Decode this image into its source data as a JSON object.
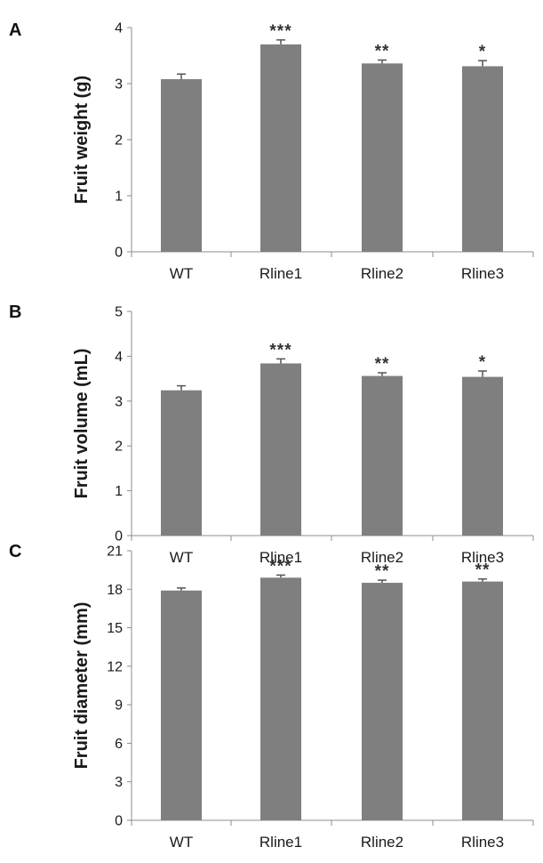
{
  "chart_data": [
    {
      "type": "bar",
      "panel": "A",
      "ylabel": "Fruit weight  (g)",
      "categories": [
        "WT",
        "Rline1",
        "Rline2",
        "Rline3"
      ],
      "values": [
        3.08,
        3.7,
        3.36,
        3.31
      ],
      "errors": [
        0.09,
        0.08,
        0.06,
        0.1
      ],
      "significance": [
        "",
        "***",
        "**",
        "*"
      ],
      "ylim": [
        0,
        4
      ],
      "yticks": [
        "0",
        "1",
        "2",
        "3",
        "4"
      ],
      "bar_color": "#7f7f7f",
      "grid": false
    },
    {
      "type": "bar",
      "panel": "B",
      "ylabel": "Fruit volume (mL)",
      "categories": [
        "WT",
        "Rline1",
        "Rline2",
        "Rline3"
      ],
      "values": [
        3.24,
        3.84,
        3.56,
        3.54
      ],
      "errors": [
        0.1,
        0.1,
        0.07,
        0.13
      ],
      "significance": [
        "",
        "***",
        "**",
        "*"
      ],
      "ylim": [
        0,
        5
      ],
      "yticks": [
        "0",
        "1",
        "2",
        "3",
        "4",
        "5"
      ],
      "bar_color": "#7f7f7f",
      "grid": false
    },
    {
      "type": "bar",
      "panel": "C",
      "ylabel": "Fruit diameter (mm)",
      "categories": [
        "WT",
        "Rline1",
        "Rline2",
        "Rline3"
      ],
      "values": [
        17.9,
        18.9,
        18.5,
        18.6
      ],
      "errors": [
        0.2,
        0.2,
        0.2,
        0.2
      ],
      "significance": [
        "",
        "***",
        "**",
        "**"
      ],
      "ylim": [
        0,
        21
      ],
      "yticks": [
        "0",
        "3",
        "6",
        "9",
        "12",
        "15",
        "18",
        "21"
      ],
      "bar_color": "#7f7f7f",
      "grid": false
    }
  ]
}
